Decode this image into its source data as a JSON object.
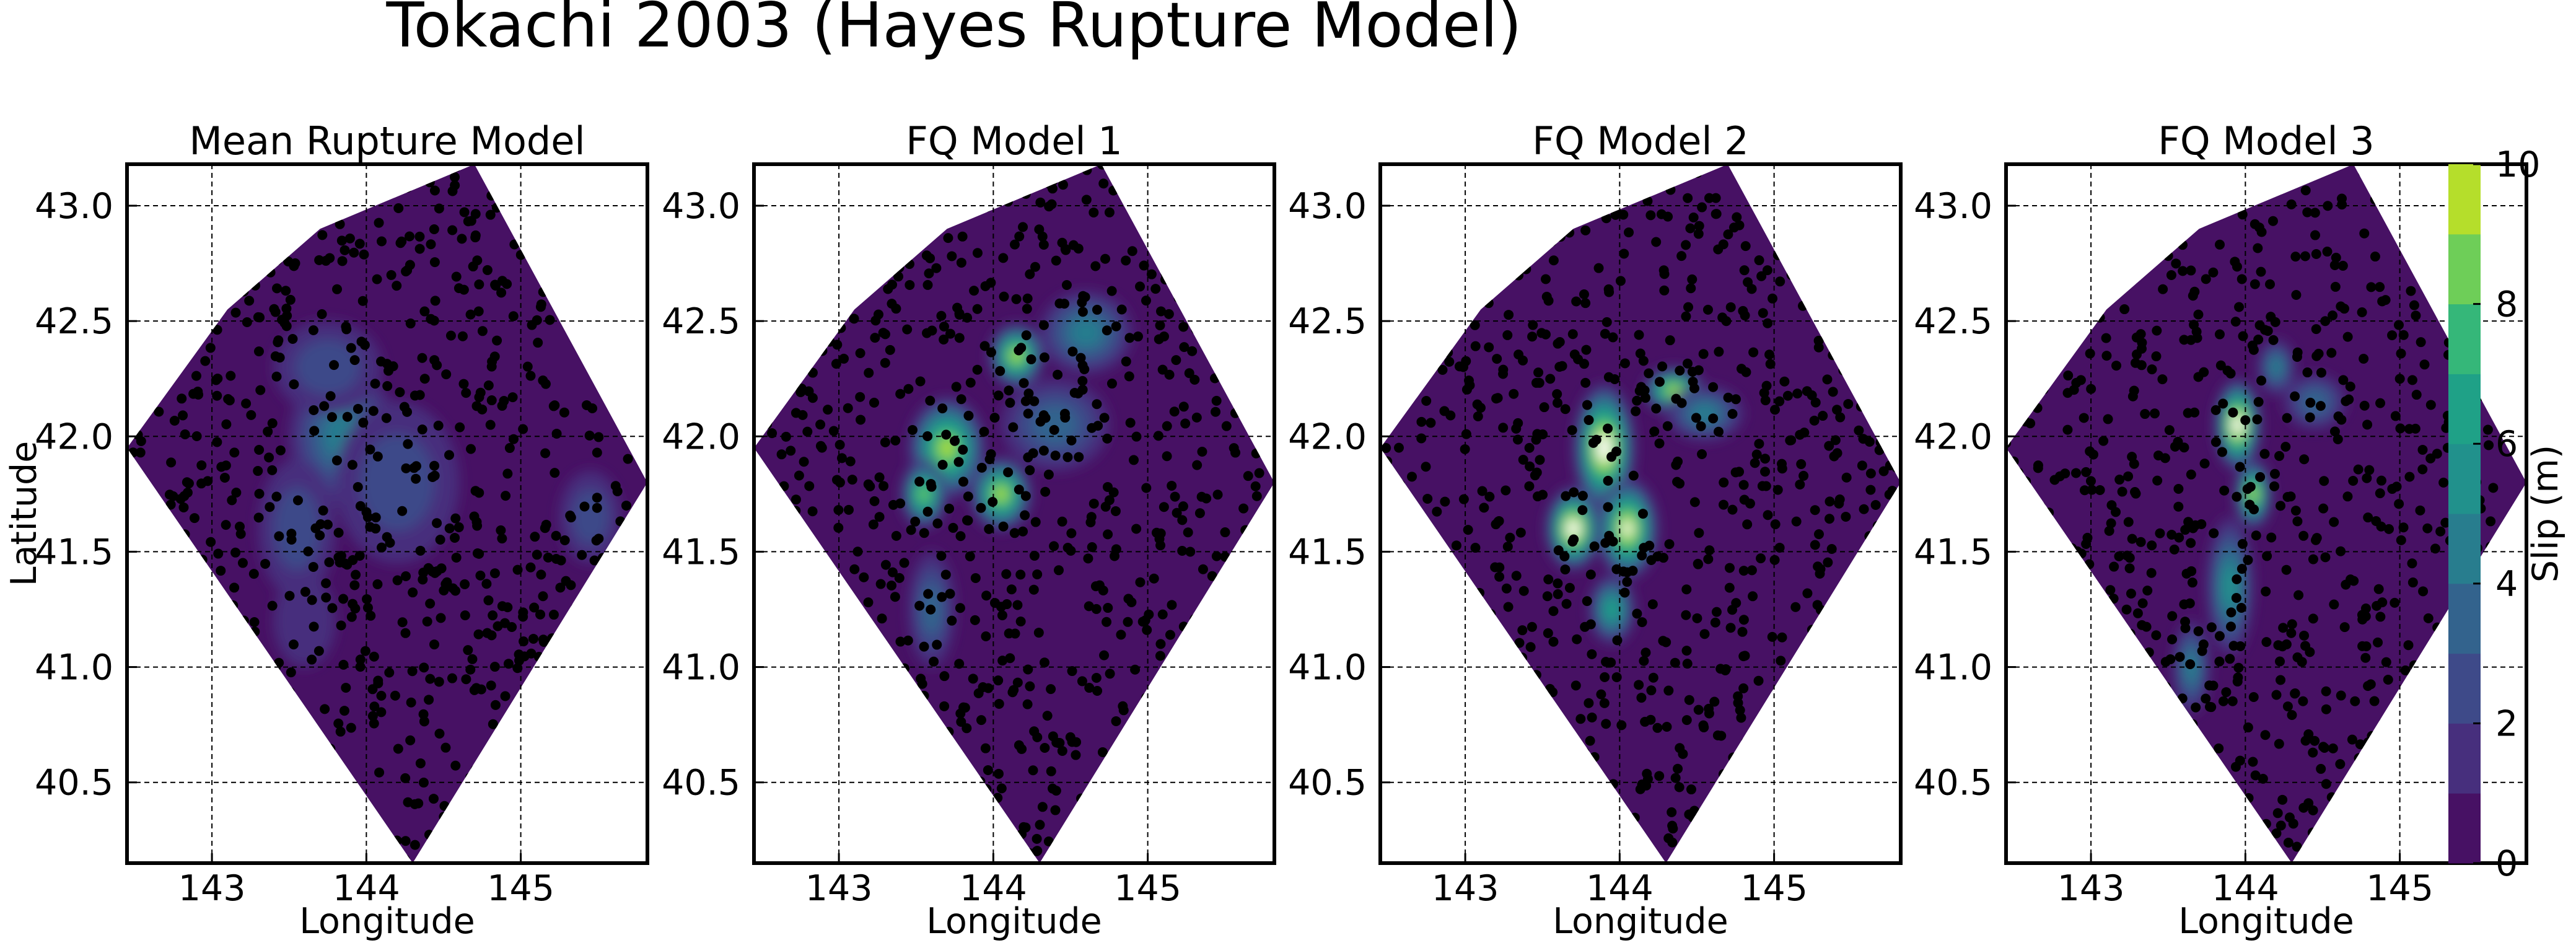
{
  "chart_data": {
    "title": "Tokachi 2003 (Hayes Rupture Model)",
    "type": "heatmap",
    "subtype": "filled contour map with scatter points",
    "xlabel": "Longitude",
    "ylabel": "Latitude",
    "xlim": [
      142.45,
      145.82
    ],
    "ylim": [
      40.15,
      43.18
    ],
    "xticks": [
      "143",
      "144",
      "145"
    ],
    "yticks": [
      "40.5",
      "41.0",
      "41.5",
      "42.0",
      "42.5",
      "43.0"
    ],
    "grid": true,
    "colormap": "viridis",
    "colorbar": {
      "label": "Slip (m)",
      "range": [
        0,
        10
      ],
      "levels": [
        0,
        1,
        2,
        3,
        4,
        5,
        6,
        7,
        8,
        9,
        10
      ],
      "ticks": [
        "0",
        "2",
        "4",
        "6",
        "8",
        "10"
      ],
      "colors": [
        "#471164",
        "#472f7d",
        "#3e4a89",
        "#33638d",
        "#287d8e",
        "#21918c",
        "#1fa187",
        "#35b779",
        "#6ece58",
        "#b5de2b",
        "#fde725"
      ],
      "overflow_color": "#ffffff"
    },
    "fault_outline_lonlat": [
      [
        142.45,
        41.95
      ],
      [
        143.1,
        42.55
      ],
      [
        143.7,
        42.9
      ],
      [
        144.7,
        43.18
      ],
      [
        145.82,
        41.8
      ],
      [
        144.3,
        40.15
      ]
    ],
    "panels": [
      {
        "title": "Mean Rupture Model",
        "slip_patches": [
          {
            "lon": 143.85,
            "lat": 42.0,
            "slip": 4.5,
            "rx": 0.35,
            "ry": 0.3
          },
          {
            "lon": 143.75,
            "lat": 42.3,
            "slip": 2.5,
            "rx": 0.35,
            "ry": 0.2
          },
          {
            "lon": 144.2,
            "lat": 41.8,
            "slip": 2.0,
            "rx": 0.4,
            "ry": 0.35
          },
          {
            "lon": 143.55,
            "lat": 41.6,
            "slip": 2.0,
            "rx": 0.25,
            "ry": 0.3
          },
          {
            "lon": 145.45,
            "lat": 41.65,
            "slip": 2.5,
            "rx": 0.2,
            "ry": 0.2
          },
          {
            "lon": 143.6,
            "lat": 41.2,
            "slip": 1.5,
            "rx": 0.2,
            "ry": 0.2
          }
        ]
      },
      {
        "title": "FQ Model 1",
        "slip_patches": [
          {
            "lon": 143.7,
            "lat": 41.95,
            "slip": 9.0,
            "rx": 0.25,
            "ry": 0.22
          },
          {
            "lon": 144.15,
            "lat": 42.35,
            "slip": 9.5,
            "rx": 0.18,
            "ry": 0.14
          },
          {
            "lon": 144.05,
            "lat": 41.75,
            "slip": 9.0,
            "rx": 0.2,
            "ry": 0.16
          },
          {
            "lon": 143.55,
            "lat": 41.75,
            "slip": 8.0,
            "rx": 0.15,
            "ry": 0.15
          },
          {
            "lon": 144.6,
            "lat": 42.45,
            "slip": 4.5,
            "rx": 0.3,
            "ry": 0.18
          },
          {
            "lon": 144.4,
            "lat": 42.05,
            "slip": 3.5,
            "rx": 0.35,
            "ry": 0.2
          },
          {
            "lon": 143.6,
            "lat": 41.25,
            "slip": 3.0,
            "rx": 0.15,
            "ry": 0.25
          }
        ]
      },
      {
        "title": "FQ Model 2",
        "slip_patches": [
          {
            "lon": 143.9,
            "lat": 41.95,
            "slip": 11.0,
            "rx": 0.2,
            "ry": 0.28
          },
          {
            "lon": 143.7,
            "lat": 41.6,
            "slip": 11.0,
            "rx": 0.18,
            "ry": 0.18
          },
          {
            "lon": 144.05,
            "lat": 41.6,
            "slip": 10.0,
            "rx": 0.2,
            "ry": 0.22
          },
          {
            "lon": 144.35,
            "lat": 42.2,
            "slip": 9.0,
            "rx": 0.2,
            "ry": 0.1
          },
          {
            "lon": 143.95,
            "lat": 41.25,
            "slip": 6.0,
            "rx": 0.15,
            "ry": 0.15
          },
          {
            "lon": 144.55,
            "lat": 42.1,
            "slip": 4.0,
            "rx": 0.25,
            "ry": 0.12
          }
        ]
      },
      {
        "title": "FQ Model 3",
        "slip_patches": [
          {
            "lon": 143.95,
            "lat": 42.05,
            "slip": 11.0,
            "rx": 0.15,
            "ry": 0.2
          },
          {
            "lon": 144.05,
            "lat": 41.75,
            "slip": 9.5,
            "rx": 0.12,
            "ry": 0.15
          },
          {
            "lon": 144.2,
            "lat": 42.3,
            "slip": 4.5,
            "rx": 0.12,
            "ry": 0.12
          },
          {
            "lon": 143.9,
            "lat": 41.35,
            "slip": 5.0,
            "rx": 0.15,
            "ry": 0.3
          },
          {
            "lon": 143.65,
            "lat": 41.0,
            "slip": 4.0,
            "rx": 0.12,
            "ry": 0.2
          },
          {
            "lon": 144.45,
            "lat": 42.15,
            "slip": 3.0,
            "rx": 0.2,
            "ry": 0.12
          }
        ]
      }
    ],
    "scatter": {
      "marker": "filled circle",
      "color": "#000000",
      "approx_count_per_panel": 900
    }
  }
}
